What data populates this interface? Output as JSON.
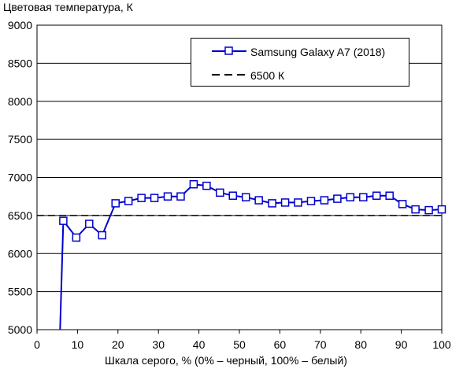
{
  "chart_data": {
    "type": "line",
    "ylabel": "Цветовая температура, К",
    "xlabel": "Шкала серого, % (0% – черный, 100% – белый)",
    "xlim": [
      0,
      100
    ],
    "ylim": [
      5000,
      9000
    ],
    "xticks": [
      "0",
      "10",
      "20",
      "30",
      "40",
      "50",
      "60",
      "70",
      "80",
      "90",
      "100"
    ],
    "yticks": [
      "5000",
      "5500",
      "6000",
      "6500",
      "7000",
      "7500",
      "8000",
      "8500",
      "9000"
    ],
    "grid": "horizontal",
    "legend_position": "top-right",
    "series": [
      {
        "name": "Samsung Galaxy A7 (2018)",
        "color": "#0000cc",
        "marker": "square",
        "x": [
          5.7,
          6.5,
          9.7,
          12.9,
          16.1,
          19.4,
          22.6,
          25.8,
          29.0,
          32.3,
          35.5,
          38.7,
          41.9,
          45.2,
          48.4,
          51.6,
          54.8,
          58.1,
          61.3,
          64.5,
          67.7,
          71.0,
          74.2,
          77.4,
          80.6,
          83.9,
          87.1,
          90.3,
          93.5,
          96.8,
          100
        ],
        "y": [
          5000,
          6430,
          6210,
          6390,
          6240,
          6660,
          6690,
          6730,
          6730,
          6750,
          6750,
          6910,
          6890,
          6800,
          6760,
          6740,
          6700,
          6660,
          6670,
          6670,
          6690,
          6700,
          6720,
          6740,
          6740,
          6760,
          6760,
          6650,
          6580,
          6570,
          6580
        ]
      },
      {
        "name": "6500 К",
        "color": "#000000",
        "style": "dashed",
        "x": [
          0,
          100
        ],
        "y": [
          6500,
          6500
        ]
      }
    ]
  }
}
